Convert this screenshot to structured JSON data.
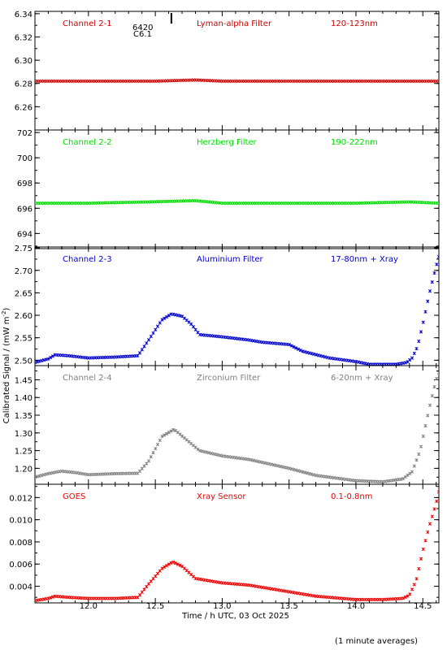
{
  "figure": {
    "xlabel": "Time / h UTC, 03 Oct 2025",
    "ylabel": "Calibrated Signal / (mW m",
    "ylabel_sup": "-2",
    "ylabel_close": ")",
    "footnote": "(1 minute averages)",
    "flare_marker": {
      "time": 12.62,
      "label_top": "6420",
      "label_bottom": "C6.1"
    },
    "x_ticks": [
      "12.0",
      "12.5",
      "13.0",
      "13.5",
      "14.0",
      "14.5"
    ]
  },
  "chart_data": [
    {
      "type": "scatter",
      "panel_labels": [
        "Channel 2-1",
        "Lyman-alpha Filter",
        "120-123nm"
      ],
      "color": "#cc0000",
      "xlim": [
        11.6,
        14.62
      ],
      "ylim": [
        6.24,
        6.342
      ],
      "y_ticks": [
        "6.26",
        "6.28",
        "6.30",
        "6.32",
        "6.34"
      ],
      "series": [
        {
          "x": [
            11.6,
            12.0,
            12.5,
            12.8,
            13.0,
            13.5,
            14.0,
            14.5,
            14.62
          ],
          "y": [
            6.282,
            6.282,
            6.282,
            6.283,
            6.282,
            6.282,
            6.282,
            6.282,
            6.282
          ]
        }
      ]
    },
    {
      "type": "scatter",
      "panel_labels": [
        "Channel 2-2",
        "Herzberg Filter",
        "190-222nm"
      ],
      "color": "#00dd00",
      "xlim": [
        11.6,
        14.62
      ],
      "ylim": [
        692.8,
        702.2
      ],
      "y_ticks": [
        "694",
        "696",
        "698",
        "700",
        "702"
      ],
      "series": [
        {
          "x": [
            11.6,
            12.0,
            12.45,
            12.8,
            13.0,
            13.5,
            14.0,
            14.4,
            14.62
          ],
          "y": [
            696.4,
            696.4,
            696.5,
            696.6,
            696.4,
            696.4,
            696.4,
            696.5,
            696.4
          ]
        }
      ]
    },
    {
      "type": "scatter",
      "panel_labels": [
        "Channel 2-3",
        "Aluminium Filter",
        "17-80nm + Xray"
      ],
      "color": "#0000cc",
      "xlim": [
        11.6,
        14.62
      ],
      "ylim": [
        2.488,
        2.752
      ],
      "y_ticks": [
        "2.50",
        "2.55",
        "2.60",
        "2.65",
        "2.70",
        "2.75"
      ],
      "series": [
        {
          "x": [
            11.6,
            11.7,
            11.75,
            11.85,
            12.0,
            12.2,
            12.37,
            12.45,
            12.55,
            12.62,
            12.7,
            12.77,
            12.83,
            13.0,
            13.2,
            13.3,
            13.5,
            13.6,
            13.8,
            14.0,
            14.1,
            14.3,
            14.38,
            14.42,
            14.46,
            14.5,
            14.55,
            14.6,
            14.62
          ],
          "y": [
            2.495,
            2.503,
            2.512,
            2.51,
            2.505,
            2.507,
            2.51,
            2.545,
            2.59,
            2.603,
            2.598,
            2.58,
            2.557,
            2.552,
            2.545,
            2.54,
            2.535,
            2.52,
            2.505,
            2.497,
            2.491,
            2.491,
            2.495,
            2.505,
            2.53,
            2.58,
            2.65,
            2.71,
            2.73
          ]
        }
      ]
    },
    {
      "type": "scatter",
      "panel_labels": [
        "Channel 2-4",
        "Zirconium Filter",
        "6-20nm + Xray"
      ],
      "color": "#808080",
      "xlim": [
        11.6,
        14.62
      ],
      "ylim": [
        1.155,
        1.49
      ],
      "y_ticks": [
        "1.20",
        "1.25",
        "1.30",
        "1.35",
        "1.40",
        "1.45"
      ],
      "series": [
        {
          "x": [
            11.6,
            11.7,
            11.8,
            11.9,
            12.0,
            12.2,
            12.37,
            12.45,
            12.55,
            12.64,
            12.72,
            12.83,
            13.0,
            13.2,
            13.5,
            13.7,
            14.0,
            14.2,
            14.35,
            14.42,
            14.48,
            14.52,
            14.56,
            14.6,
            14.62
          ],
          "y": [
            1.175,
            1.185,
            1.192,
            1.188,
            1.182,
            1.185,
            1.186,
            1.22,
            1.29,
            1.31,
            1.285,
            1.25,
            1.235,
            1.225,
            1.2,
            1.18,
            1.165,
            1.162,
            1.17,
            1.19,
            1.25,
            1.32,
            1.39,
            1.45,
            1.47
          ]
        }
      ]
    },
    {
      "type": "scatter",
      "panel_labels": [
        "GOES",
        "Xray Sensor",
        "0.1-0.8nm"
      ],
      "color": "#ee0000",
      "xlim": [
        11.6,
        14.62
      ],
      "ylim": [
        0.0025,
        0.0132
      ],
      "y_ticks": [
        "0.004",
        "0.006",
        "0.008",
        "0.010",
        "0.012"
      ],
      "series": [
        {
          "x": [
            11.6,
            11.7,
            11.75,
            11.85,
            12.0,
            12.2,
            12.37,
            12.45,
            12.55,
            12.63,
            12.7,
            12.8,
            13.0,
            13.2,
            13.5,
            13.7,
            14.0,
            14.2,
            14.35,
            14.4,
            14.45,
            14.5,
            14.55,
            14.6,
            14.62
          ],
          "y": [
            0.0027,
            0.0029,
            0.0031,
            0.003,
            0.0029,
            0.0029,
            0.003,
            0.0042,
            0.0056,
            0.0062,
            0.0058,
            0.0047,
            0.0043,
            0.0041,
            0.0035,
            0.0031,
            0.0028,
            0.0028,
            0.0029,
            0.0032,
            0.0045,
            0.0072,
            0.0095,
            0.0115,
            0.0125
          ]
        }
      ]
    }
  ]
}
